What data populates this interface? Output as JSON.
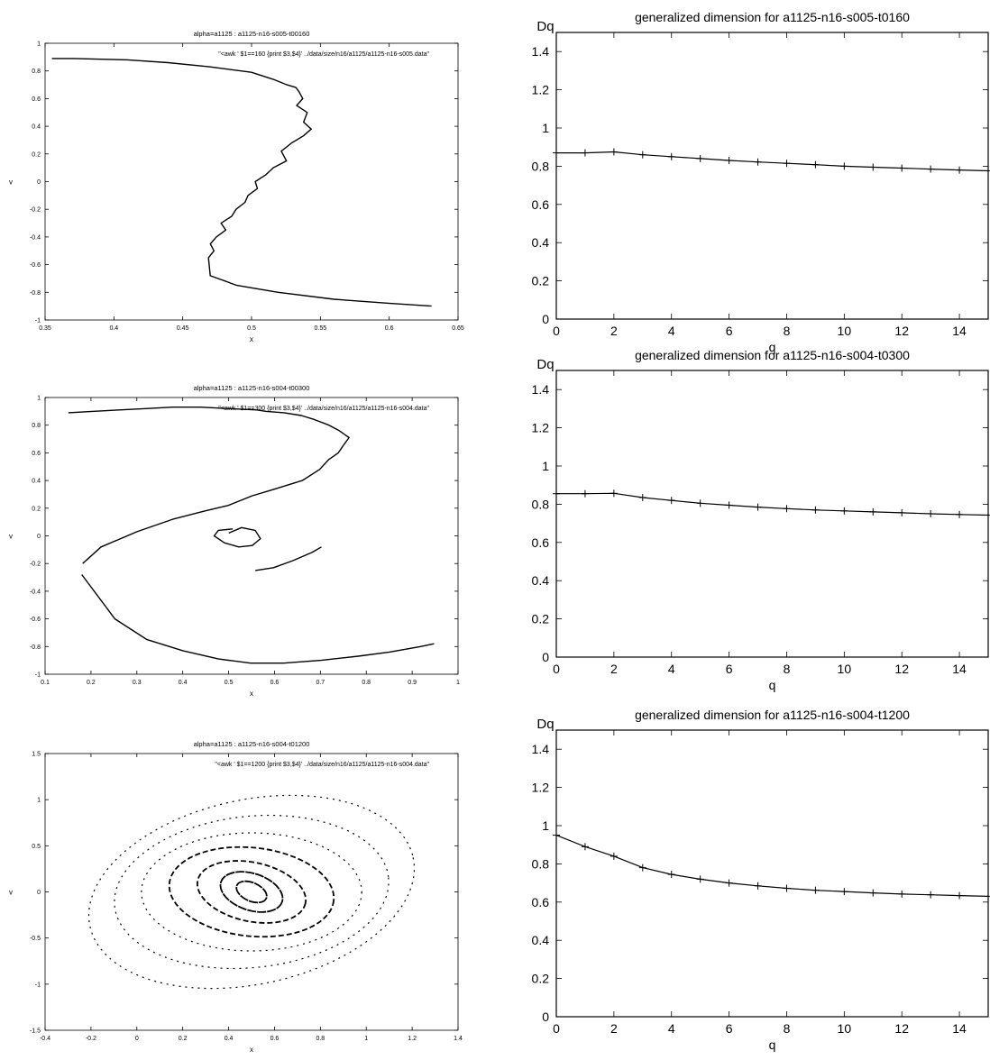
{
  "chart_data": [
    {
      "type": "scatter",
      "title": "alpha=a1125 : a1125-n16-s005-t00160",
      "xlabel": "x",
      "ylabel": "v",
      "xlim": [
        0.35,
        0.65
      ],
      "ylim": [
        -1,
        1
      ],
      "xticks": [
        "0.35",
        "0.4",
        "0.45",
        "0.5",
        "0.55",
        "0.6",
        "0.65"
      ],
      "yticks": [
        "-1",
        "-0.8",
        "-0.6",
        "-0.4",
        "-0.2",
        "0",
        "0.2",
        "0.4",
        "0.6",
        "0.8",
        "1"
      ],
      "legend": "\"<awk ' $1==160 {print $3,$4}' ../data/size/n16/a1125/a1125-n16-s005.data\"",
      "legend_position": "top-right",
      "series": [
        {
          "x": [
            0.355,
            0.37,
            0.39,
            0.41,
            0.44,
            0.47,
            0.5,
            0.515,
            0.525,
            0.532,
            0.535,
            0.538,
            0.533,
            0.54,
            0.537,
            0.543,
            0.538,
            0.53,
            0.522,
            0.525,
            0.515,
            0.51,
            0.503,
            0.505,
            0.498,
            0.495,
            0.488,
            0.485,
            0.478,
            0.482,
            0.475,
            0.47,
            0.472,
            0.468,
            0.47,
            0.49,
            0.52,
            0.56,
            0.6,
            0.63
          ],
          "y": [
            0.89,
            0.89,
            0.885,
            0.88,
            0.86,
            0.83,
            0.79,
            0.74,
            0.7,
            0.68,
            0.65,
            0.6,
            0.55,
            0.5,
            0.43,
            0.38,
            0.33,
            0.28,
            0.22,
            0.15,
            0.1,
            0.05,
            0.0,
            -0.05,
            -0.1,
            -0.15,
            -0.2,
            -0.25,
            -0.3,
            -0.35,
            -0.4,
            -0.45,
            -0.5,
            -0.55,
            -0.68,
            -0.75,
            -0.8,
            -0.85,
            -0.88,
            -0.9
          ]
        }
      ]
    },
    {
      "type": "scatter",
      "title": "alpha=a1125 : a1125-n16-s004-t00300",
      "xlabel": "x",
      "ylabel": "v",
      "xlim": [
        0.1,
        1
      ],
      "ylim": [
        -1,
        1
      ],
      "xticks": [
        "0.1",
        "0.2",
        "0.3",
        "0.4",
        "0.5",
        "0.6",
        "0.7",
        "0.8",
        "0.9",
        "1"
      ],
      "yticks": [
        "-1",
        "-0.8",
        "-0.6",
        "-0.4",
        "-0.2",
        "0",
        "0.2",
        "0.4",
        "0.6",
        "0.8",
        "1"
      ],
      "legend": "\"<awk ' $1==300 {print $3,$4}' ../data/size/n16/a1125/a1125-n16-s004.data\"",
      "legend_position": "top-right",
      "series": [
        {
          "x": [
            0.18,
            0.25,
            0.32,
            0.4,
            0.48,
            0.55,
            0.62,
            0.7,
            0.78,
            0.85,
            0.92,
            0.95
          ],
          "y": [
            -0.28,
            -0.6,
            -0.75,
            -0.83,
            -0.89,
            -0.92,
            -0.92,
            -0.9,
            -0.87,
            -0.84,
            -0.8,
            -0.78
          ]
        },
        {
          "x": [
            0.18,
            0.22,
            0.3,
            0.38,
            0.45,
            0.5,
            0.55,
            0.6,
            0.66,
            0.7,
            0.72,
            0.74,
            0.75,
            0.76,
            0.74,
            0.72,
            0.69,
            0.66,
            0.62,
            0.58,
            0.56
          ],
          "y": [
            -0.2,
            -0.08,
            0.03,
            0.12,
            0.18,
            0.22,
            0.29,
            0.34,
            0.4,
            0.48,
            0.55,
            0.6,
            0.66,
            0.71,
            0.76,
            0.8,
            0.84,
            0.87,
            0.89,
            0.9,
            0.91
          ]
        },
        {
          "x": [
            0.56,
            0.5,
            0.44,
            0.38,
            0.32,
            0.26,
            0.2,
            0.15
          ],
          "y": [
            0.91,
            0.92,
            0.93,
            0.93,
            0.92,
            0.91,
            0.9,
            0.89
          ]
        },
        {
          "x": [
            0.5,
            0.53,
            0.56,
            0.57,
            0.55,
            0.52,
            0.49,
            0.47,
            0.48,
            0.51
          ],
          "y": [
            0.02,
            0.06,
            0.04,
            -0.02,
            -0.07,
            -0.08,
            -0.05,
            0.0,
            0.04,
            0.05
          ]
        },
        {
          "x": [
            0.56,
            0.6,
            0.64,
            0.68,
            0.7
          ],
          "y": [
            -0.25,
            -0.23,
            -0.18,
            -0.12,
            -0.08
          ]
        }
      ]
    },
    {
      "type": "scatter",
      "title": "alpha=a1125 : a1125-n16-s004-t01200",
      "xlabel": "x",
      "ylabel": "v",
      "xlim": [
        -0.4,
        1.4
      ],
      "ylim": [
        -1.5,
        1.5
      ],
      "xticks": [
        "-0.4",
        "-0.2",
        "0",
        "0.2",
        "0.4",
        "0.6",
        "0.8",
        "1",
        "1.2",
        "1.4"
      ],
      "yticks": [
        "-1.5",
        "-1",
        "-0.5",
        "0",
        "0.5",
        "1",
        "1.5"
      ],
      "legend": "\"<awk ' $1==1200 {print $3,$4}' ../data/size/n16/a1125/a1125-n16-s004.data\"",
      "legend_position": "top-right",
      "rings": [
        {
          "cx": 0.5,
          "cy": 0.0,
          "rx": 0.72,
          "ry": 1.0
        },
        {
          "cx": 0.5,
          "cy": 0.0,
          "rx": 0.6,
          "ry": 0.82
        },
        {
          "cx": 0.5,
          "cy": 0.0,
          "rx": 0.48,
          "ry": 0.64
        },
        {
          "cx": 0.5,
          "cy": 0.0,
          "rx": 0.36,
          "ry": 0.48
        },
        {
          "cx": 0.5,
          "cy": 0.0,
          "rx": 0.24,
          "ry": 0.32
        },
        {
          "cx": 0.5,
          "cy": 0.0,
          "rx": 0.14,
          "ry": 0.2
        },
        {
          "cx": 0.5,
          "cy": 0.0,
          "rx": 0.07,
          "ry": 0.1
        }
      ]
    },
    {
      "type": "line",
      "title": "generalized dimension for a1125-n16-s005-t0160",
      "xlabel": "q",
      "ylabel": "Dq",
      "xlim": [
        0,
        15
      ],
      "ylim": [
        0,
        1.5
      ],
      "xticks": [
        "0",
        "2",
        "4",
        "6",
        "8",
        "10",
        "12",
        "14"
      ],
      "yticks": [
        "0",
        "0.2",
        "0.4",
        "0.6",
        "0.8",
        "1",
        "1.2",
        "1.4"
      ],
      "x": [
        0,
        1,
        2,
        3,
        4,
        5,
        6,
        7,
        8,
        9,
        10,
        11,
        12,
        13,
        14,
        15
      ],
      "series": [
        {
          "values": [
            0.87,
            0.87,
            0.875,
            0.86,
            0.85,
            0.84,
            0.83,
            0.822,
            0.815,
            0.808,
            0.8,
            0.795,
            0.79,
            0.785,
            0.78,
            0.776
          ]
        }
      ]
    },
    {
      "type": "line",
      "title": "generalized dimension for a1125-n16-s004-t0300",
      "xlabel": "q",
      "ylabel": "Dq",
      "xlim": [
        0,
        15
      ],
      "ylim": [
        0,
        1.5
      ],
      "xticks": [
        "0",
        "2",
        "4",
        "6",
        "8",
        "10",
        "12",
        "14"
      ],
      "yticks": [
        "0",
        "0.2",
        "0.4",
        "0.6",
        "0.8",
        "1",
        "1.2",
        "1.4"
      ],
      "x": [
        0,
        1,
        2,
        3,
        4,
        5,
        6,
        7,
        8,
        9,
        10,
        11,
        12,
        13,
        14,
        15
      ],
      "series": [
        {
          "values": [
            0.855,
            0.855,
            0.857,
            0.835,
            0.82,
            0.805,
            0.795,
            0.785,
            0.777,
            0.77,
            0.765,
            0.76,
            0.755,
            0.75,
            0.746,
            0.743
          ]
        }
      ]
    },
    {
      "type": "line",
      "title": "generalized dimension for a1125-n16-s004-t1200",
      "xlabel": "q",
      "ylabel": "Dq",
      "xlim": [
        0,
        15
      ],
      "ylim": [
        0,
        1.5
      ],
      "xticks": [
        "0",
        "2",
        "4",
        "6",
        "8",
        "10",
        "12",
        "14"
      ],
      "yticks": [
        "0",
        "0.2",
        "0.4",
        "0.6",
        "0.8",
        "1",
        "1.2",
        "1.4"
      ],
      "x": [
        0,
        1,
        2,
        3,
        4,
        5,
        6,
        7,
        8,
        9,
        10,
        11,
        12,
        13,
        14,
        15
      ],
      "series": [
        {
          "values": [
            0.95,
            0.89,
            0.84,
            0.78,
            0.745,
            0.72,
            0.7,
            0.685,
            0.672,
            0.662,
            0.655,
            0.648,
            0.642,
            0.638,
            0.634,
            0.63
          ]
        }
      ]
    }
  ]
}
